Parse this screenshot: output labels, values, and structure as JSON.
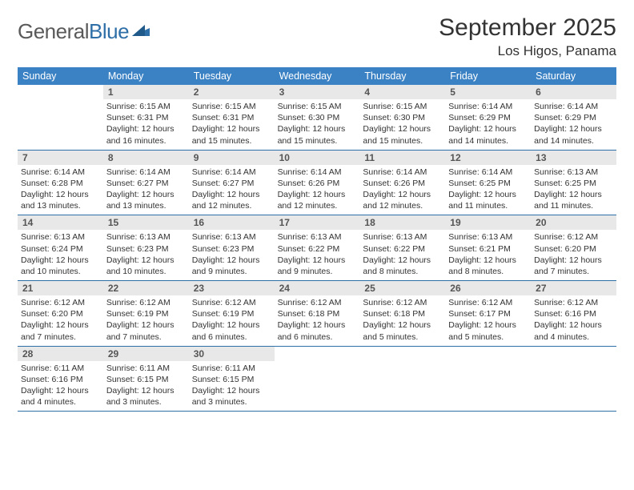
{
  "brand": {
    "part1": "General",
    "part2": "Blue"
  },
  "title": "September 2025",
  "location": "Los Higos, Panama",
  "colors": {
    "header_bg": "#3b82c4",
    "daynum_bg": "#e8e8e8",
    "rule": "#2f6fa7",
    "brand_gray": "#5a5a5a",
    "brand_blue": "#2f6fa7"
  },
  "weekdays": [
    "Sunday",
    "Monday",
    "Tuesday",
    "Wednesday",
    "Thursday",
    "Friday",
    "Saturday"
  ],
  "weeks": [
    [
      null,
      {
        "n": "1",
        "sr": "6:15 AM",
        "ss": "6:31 PM",
        "dl": "12 hours and 16 minutes."
      },
      {
        "n": "2",
        "sr": "6:15 AM",
        "ss": "6:31 PM",
        "dl": "12 hours and 15 minutes."
      },
      {
        "n": "3",
        "sr": "6:15 AM",
        "ss": "6:30 PM",
        "dl": "12 hours and 15 minutes."
      },
      {
        "n": "4",
        "sr": "6:15 AM",
        "ss": "6:30 PM",
        "dl": "12 hours and 15 minutes."
      },
      {
        "n": "5",
        "sr": "6:14 AM",
        "ss": "6:29 PM",
        "dl": "12 hours and 14 minutes."
      },
      {
        "n": "6",
        "sr": "6:14 AM",
        "ss": "6:29 PM",
        "dl": "12 hours and 14 minutes."
      }
    ],
    [
      {
        "n": "7",
        "sr": "6:14 AM",
        "ss": "6:28 PM",
        "dl": "12 hours and 13 minutes."
      },
      {
        "n": "8",
        "sr": "6:14 AM",
        "ss": "6:27 PM",
        "dl": "12 hours and 13 minutes."
      },
      {
        "n": "9",
        "sr": "6:14 AM",
        "ss": "6:27 PM",
        "dl": "12 hours and 12 minutes."
      },
      {
        "n": "10",
        "sr": "6:14 AM",
        "ss": "6:26 PM",
        "dl": "12 hours and 12 minutes."
      },
      {
        "n": "11",
        "sr": "6:14 AM",
        "ss": "6:26 PM",
        "dl": "12 hours and 12 minutes."
      },
      {
        "n": "12",
        "sr": "6:14 AM",
        "ss": "6:25 PM",
        "dl": "12 hours and 11 minutes."
      },
      {
        "n": "13",
        "sr": "6:13 AM",
        "ss": "6:25 PM",
        "dl": "12 hours and 11 minutes."
      }
    ],
    [
      {
        "n": "14",
        "sr": "6:13 AM",
        "ss": "6:24 PM",
        "dl": "12 hours and 10 minutes."
      },
      {
        "n": "15",
        "sr": "6:13 AM",
        "ss": "6:23 PM",
        "dl": "12 hours and 10 minutes."
      },
      {
        "n": "16",
        "sr": "6:13 AM",
        "ss": "6:23 PM",
        "dl": "12 hours and 9 minutes."
      },
      {
        "n": "17",
        "sr": "6:13 AM",
        "ss": "6:22 PM",
        "dl": "12 hours and 9 minutes."
      },
      {
        "n": "18",
        "sr": "6:13 AM",
        "ss": "6:22 PM",
        "dl": "12 hours and 8 minutes."
      },
      {
        "n": "19",
        "sr": "6:13 AM",
        "ss": "6:21 PM",
        "dl": "12 hours and 8 minutes."
      },
      {
        "n": "20",
        "sr": "6:12 AM",
        "ss": "6:20 PM",
        "dl": "12 hours and 7 minutes."
      }
    ],
    [
      {
        "n": "21",
        "sr": "6:12 AM",
        "ss": "6:20 PM",
        "dl": "12 hours and 7 minutes."
      },
      {
        "n": "22",
        "sr": "6:12 AM",
        "ss": "6:19 PM",
        "dl": "12 hours and 7 minutes."
      },
      {
        "n": "23",
        "sr": "6:12 AM",
        "ss": "6:19 PM",
        "dl": "12 hours and 6 minutes."
      },
      {
        "n": "24",
        "sr": "6:12 AM",
        "ss": "6:18 PM",
        "dl": "12 hours and 6 minutes."
      },
      {
        "n": "25",
        "sr": "6:12 AM",
        "ss": "6:18 PM",
        "dl": "12 hours and 5 minutes."
      },
      {
        "n": "26",
        "sr": "6:12 AM",
        "ss": "6:17 PM",
        "dl": "12 hours and 5 minutes."
      },
      {
        "n": "27",
        "sr": "6:12 AM",
        "ss": "6:16 PM",
        "dl": "12 hours and 4 minutes."
      }
    ],
    [
      {
        "n": "28",
        "sr": "6:11 AM",
        "ss": "6:16 PM",
        "dl": "12 hours and 4 minutes."
      },
      {
        "n": "29",
        "sr": "6:11 AM",
        "ss": "6:15 PM",
        "dl": "12 hours and 3 minutes."
      },
      {
        "n": "30",
        "sr": "6:11 AM",
        "ss": "6:15 PM",
        "dl": "12 hours and 3 minutes."
      },
      null,
      null,
      null,
      null
    ]
  ],
  "labels": {
    "sunrise": "Sunrise:",
    "sunset": "Sunset:",
    "daylight": "Daylight:"
  }
}
